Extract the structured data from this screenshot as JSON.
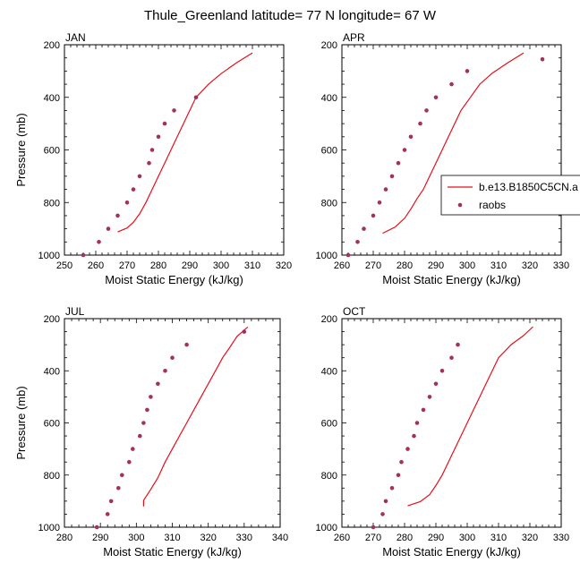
{
  "title": "Thule_Greenland  latitude= 77 N longitude= 67 W",
  "colors": {
    "model": "#e3101b",
    "obs": "#a3315a"
  },
  "legend": {
    "model_label": "b.e13.B1850C5CN.a",
    "obs_label": "raobs"
  },
  "chart_data": [
    {
      "type": "scatter",
      "label": "JAN",
      "xlabel": "Moist Static Energy (kJ/kg)",
      "ylabel": "Pressure (mb)",
      "xlim": [
        250,
        320
      ],
      "ylim": [
        1000,
        200
      ],
      "xticks": [
        250,
        260,
        270,
        280,
        290,
        300,
        310,
        320
      ],
      "yticks": [
        200,
        400,
        600,
        800,
        1000
      ],
      "series": [
        {
          "name": "b.e13.B1850C5CN.a",
          "kind": "line",
          "points": [
            [
              267,
              912
            ],
            [
              270,
              897
            ],
            [
              272,
              875
            ],
            [
              274,
              843
            ],
            [
              276,
              800
            ],
            [
              278,
              750
            ],
            [
              280,
              700
            ],
            [
              282,
              650
            ],
            [
              284,
              600
            ],
            [
              286,
              550
            ],
            [
              288,
              500
            ],
            [
              290,
              450
            ],
            [
              292,
              400
            ],
            [
              296,
              350
            ],
            [
              300,
              310
            ],
            [
              305,
              268
            ],
            [
              310,
              231
            ]
          ]
        },
        {
          "name": "raobs",
          "kind": "marker",
          "points": [
            [
              256,
              1000
            ],
            [
              261,
              950
            ],
            [
              264,
              900
            ],
            [
              267,
              850
            ],
            [
              270,
              800
            ],
            [
              272,
              750
            ],
            [
              274,
              700
            ],
            [
              277,
              650
            ],
            [
              278,
              600
            ],
            [
              280,
              550
            ],
            [
              282,
              500
            ],
            [
              285,
              450
            ],
            [
              292,
              400
            ]
          ]
        }
      ]
    },
    {
      "type": "scatter",
      "label": "APR",
      "xlabel": "Moist Static Energy (kJ/kg)",
      "ylabel": "",
      "xlim": [
        260,
        330
      ],
      "ylim": [
        1000,
        200
      ],
      "xticks": [
        260,
        270,
        280,
        290,
        300,
        310,
        320,
        330
      ],
      "yticks": [
        200,
        400,
        600,
        800,
        1000
      ],
      "series": [
        {
          "name": "b.e13.B1850C5CN.a",
          "kind": "line",
          "points": [
            [
              273,
              917
            ],
            [
              277,
              893
            ],
            [
              280,
              860
            ],
            [
              282,
              825
            ],
            [
              284,
              785
            ],
            [
              286,
              750
            ],
            [
              288,
              700
            ],
            [
              290,
              650
            ],
            [
              292,
              600
            ],
            [
              294,
              550
            ],
            [
              296,
              500
            ],
            [
              298,
              450
            ],
            [
              301,
              400
            ],
            [
              304,
              350
            ],
            [
              308,
              308
            ],
            [
              313,
              268
            ],
            [
              318,
              231
            ]
          ]
        },
        {
          "name": "raobs",
          "kind": "marker",
          "points": [
            [
              262,
              1000
            ],
            [
              265,
              950
            ],
            [
              267,
              900
            ],
            [
              270,
              850
            ],
            [
              272,
              800
            ],
            [
              274,
              750
            ],
            [
              276,
              700
            ],
            [
              278,
              650
            ],
            [
              280,
              600
            ],
            [
              282,
              550
            ],
            [
              285,
              500
            ],
            [
              287,
              450
            ],
            [
              290,
              400
            ],
            [
              295,
              350
            ],
            [
              300,
              300
            ],
            [
              324,
              255
            ]
          ]
        }
      ]
    },
    {
      "type": "scatter",
      "label": "JUL",
      "xlabel": "Moist Static Energy (kJ/kg)",
      "ylabel": "Pressure (mb)",
      "xlim": [
        280,
        340
      ],
      "ylim": [
        1000,
        200
      ],
      "xticks": [
        280,
        290,
        300,
        310,
        320,
        330,
        340
      ],
      "yticks": [
        200,
        400,
        600,
        800,
        1000
      ],
      "series": [
        {
          "name": "b.e13.B1850C5CN.a",
          "kind": "line",
          "points": [
            [
              302,
              920
            ],
            [
              302,
              897
            ],
            [
              304,
              855
            ],
            [
              306,
              810
            ],
            [
              308,
              750
            ],
            [
              310,
              700
            ],
            [
              312,
              650
            ],
            [
              314,
              600
            ],
            [
              316,
              550
            ],
            [
              318,
              500
            ],
            [
              320,
              450
            ],
            [
              322,
              400
            ],
            [
              324,
              350
            ],
            [
              326,
              310
            ],
            [
              328,
              268
            ],
            [
              331,
              232
            ]
          ]
        },
        {
          "name": "raobs",
          "kind": "marker",
          "points": [
            [
              289,
              1000
            ],
            [
              292,
              950
            ],
            [
              293,
              900
            ],
            [
              295,
              850
            ],
            [
              296,
              800
            ],
            [
              298,
              750
            ],
            [
              299,
              700
            ],
            [
              301,
              650
            ],
            [
              302,
              600
            ],
            [
              303,
              550
            ],
            [
              304,
              500
            ],
            [
              306,
              450
            ],
            [
              308,
              400
            ],
            [
              310,
              350
            ],
            [
              314,
              300
            ],
            [
              330,
              250
            ]
          ]
        }
      ]
    },
    {
      "type": "scatter",
      "label": "OCT",
      "xlabel": "Moist Static Energy (kJ/kg)",
      "ylabel": "",
      "xlim": [
        260,
        330
      ],
      "ylim": [
        1000,
        200
      ],
      "xticks": [
        260,
        270,
        280,
        290,
        300,
        310,
        320,
        330
      ],
      "yticks": [
        200,
        400,
        600,
        800,
        1000
      ],
      "series": [
        {
          "name": "b.e13.B1850C5CN.a",
          "kind": "line",
          "points": [
            [
              281,
              918
            ],
            [
              285,
              902
            ],
            [
              288,
              875
            ],
            [
              290,
              840
            ],
            [
              292,
              800
            ],
            [
              294,
              750
            ],
            [
              296,
              700
            ],
            [
              298,
              650
            ],
            [
              300,
              600
            ],
            [
              302,
              550
            ],
            [
              304,
              500
            ],
            [
              306,
              450
            ],
            [
              308,
              400
            ],
            [
              310,
              350
            ],
            [
              314,
              300
            ],
            [
              318,
              265
            ],
            [
              321,
              231
            ]
          ]
        },
        {
          "name": "raobs",
          "kind": "marker",
          "points": [
            [
              270,
              1000
            ],
            [
              273,
              950
            ],
            [
              274,
              900
            ],
            [
              276,
              850
            ],
            [
              278,
              800
            ],
            [
              279,
              750
            ],
            [
              281,
              700
            ],
            [
              283,
              650
            ],
            [
              284,
              600
            ],
            [
              286,
              550
            ],
            [
              288,
              500
            ],
            [
              290,
              450
            ],
            [
              292,
              400
            ],
            [
              295,
              350
            ],
            [
              297,
              300
            ]
          ]
        }
      ]
    }
  ]
}
